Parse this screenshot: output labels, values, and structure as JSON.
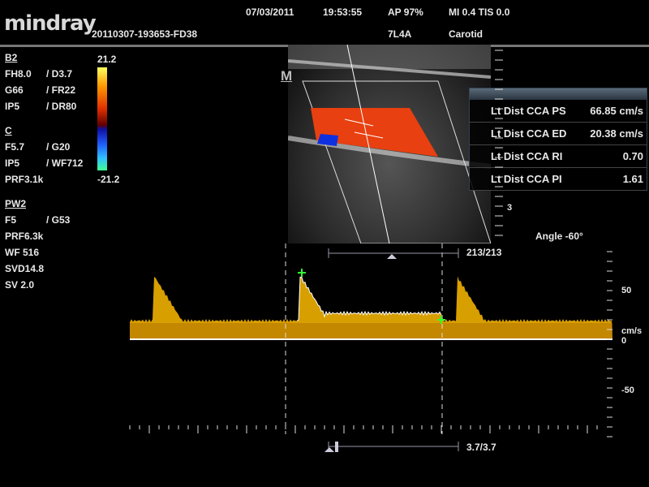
{
  "header": {
    "logo": "mindray",
    "date": "07/03/2011",
    "time": "19:53:55",
    "acoustic_power": "AP  97%",
    "mi_tis": "MI 0.4 TIS 0.0",
    "patient_id": "20110307-193653-FD38",
    "probe": "7L4A",
    "preset": "Carotid"
  },
  "params": {
    "b_mode": {
      "title": "B2",
      "rows": [
        [
          "FH8.0",
          "/ D3.7"
        ],
        [
          "G66",
          "/ FR22"
        ],
        [
          "IP5",
          "/ DR80"
        ]
      ]
    },
    "color": {
      "title": "C",
      "rows": [
        [
          "F5.7",
          "/ G20"
        ],
        [
          "IP5",
          "/ WF712"
        ],
        [
          "PRF3.1k",
          ""
        ]
      ]
    },
    "pw": {
      "title": "PW2",
      "rows": [
        [
          "F5",
          "/ G53"
        ],
        [
          "PRF6.3k",
          ""
        ],
        [
          "WF 516",
          ""
        ],
        [
          "SVD14.8",
          ""
        ],
        [
          "SV 2.0",
          ""
        ]
      ]
    }
  },
  "color_scale": {
    "max": "21.2",
    "min": "-21.2"
  },
  "image": {
    "m_marker": "M",
    "depth_label": "3",
    "angle": "Angle -60°"
  },
  "measurements": [
    {
      "label": "Lt Dist CCA PS",
      "value": "66.85 cm/s"
    },
    {
      "label": "Lt Dist CCA ED",
      "value": "20.38 cm/s"
    },
    {
      "label": "Lt Dist CCA RI",
      "value": "0.70"
    },
    {
      "label": "Lt Dist CCA PI",
      "value": "1.61"
    }
  ],
  "doppler": {
    "frame_counter": "213/213",
    "cine_counter": "3.7/3.7",
    "velocity_scale": {
      "top": "50",
      "unit": "cm/s",
      "zero": "0",
      "bottom": "-50"
    }
  },
  "colors": {
    "spectrum": "#f0b000",
    "marker": "#30ff30"
  }
}
